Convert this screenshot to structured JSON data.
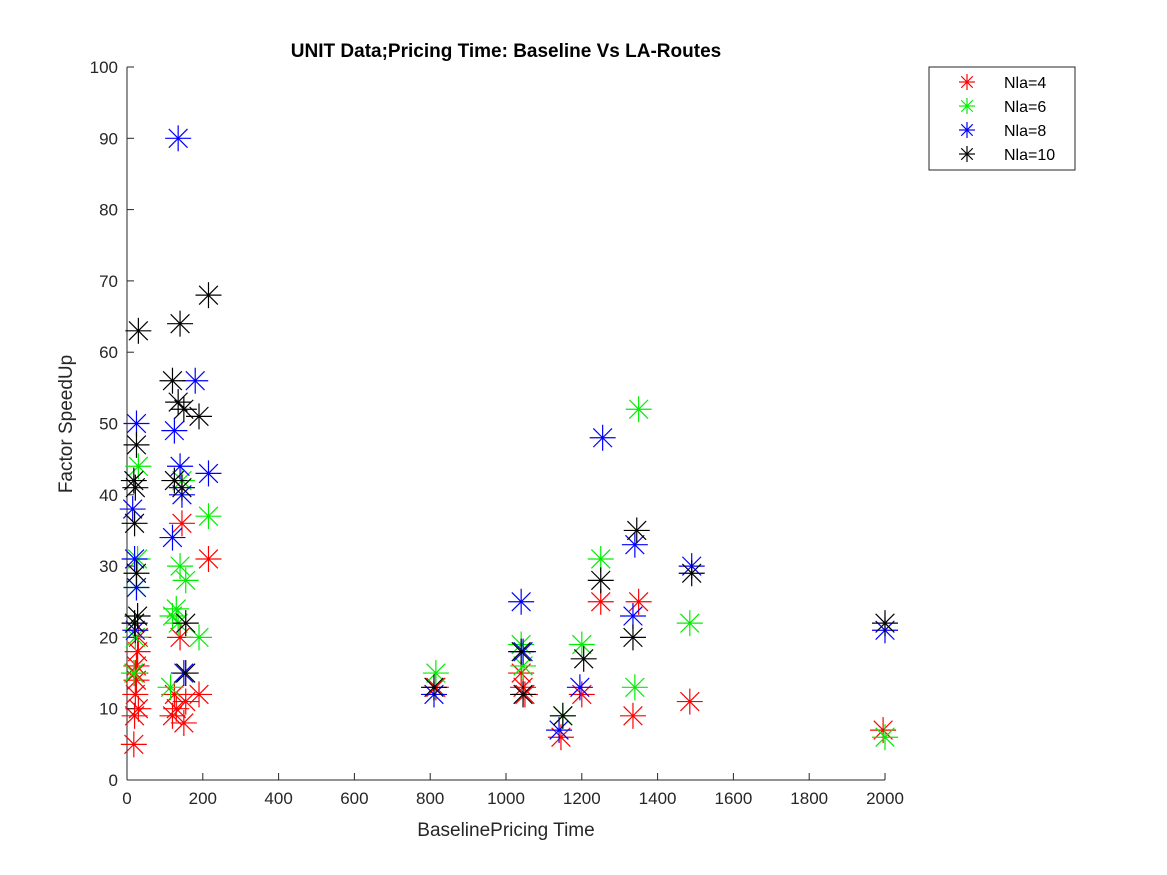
{
  "chart_data": {
    "type": "scatter",
    "title": "UNIT Data;Pricing Time: Baseline Vs LA-Routes",
    "xlabel": "BaselinePricing Time",
    "ylabel": "Factor SpeedUp",
    "xlim": [
      0,
      2000
    ],
    "ylim": [
      0,
      100
    ],
    "xticks": [
      0,
      200,
      400,
      600,
      800,
      1000,
      1200,
      1400,
      1600,
      1800,
      2000
    ],
    "yticks": [
      0,
      10,
      20,
      30,
      40,
      50,
      60,
      70,
      80,
      90,
      100
    ],
    "grid": false,
    "legend_position": "top-right",
    "marker": "asterisk",
    "series": [
      {
        "name": "Nla=4",
        "color": "#ff0000",
        "points": [
          [
            18,
            5
          ],
          [
            20,
            9
          ],
          [
            22,
            12
          ],
          [
            25,
            14
          ],
          [
            25,
            16
          ],
          [
            28,
            18
          ],
          [
            30,
            10
          ],
          [
            30,
            20
          ],
          [
            22,
            15
          ],
          [
            120,
            9
          ],
          [
            125,
            12
          ],
          [
            130,
            10
          ],
          [
            140,
            20
          ],
          [
            145,
            36
          ],
          [
            150,
            8
          ],
          [
            155,
            11
          ],
          [
            190,
            12
          ],
          [
            215,
            31
          ],
          [
            815,
            13
          ],
          [
            1040,
            15
          ],
          [
            1045,
            13
          ],
          [
            1050,
            12
          ],
          [
            1145,
            6
          ],
          [
            1200,
            12
          ],
          [
            1250,
            25
          ],
          [
            1335,
            9
          ],
          [
            1350,
            25
          ],
          [
            1485,
            11
          ],
          [
            1995,
            7
          ]
        ]
      },
      {
        "name": "Nla=6",
        "color": "#00ee00",
        "points": [
          [
            18,
            15
          ],
          [
            22,
            20
          ],
          [
            25,
            27
          ],
          [
            28,
            31
          ],
          [
            30,
            44
          ],
          [
            20,
            22
          ],
          [
            115,
            13
          ],
          [
            120,
            23
          ],
          [
            130,
            24
          ],
          [
            135,
            22
          ],
          [
            140,
            30
          ],
          [
            145,
            42
          ],
          [
            155,
            28
          ],
          [
            190,
            20
          ],
          [
            215,
            37
          ],
          [
            815,
            15
          ],
          [
            1040,
            19
          ],
          [
            1045,
            16
          ],
          [
            1150,
            9
          ],
          [
            1200,
            19
          ],
          [
            1250,
            31
          ],
          [
            1340,
            13
          ],
          [
            1350,
            52
          ],
          [
            1485,
            22
          ],
          [
            2000,
            6
          ]
        ]
      },
      {
        "name": "Nla=8",
        "color": "#0000ff",
        "points": [
          [
            15,
            38
          ],
          [
            20,
            31
          ],
          [
            25,
            27
          ],
          [
            22,
            21
          ],
          [
            25,
            50
          ],
          [
            120,
            34
          ],
          [
            125,
            49
          ],
          [
            135,
            90
          ],
          [
            140,
            44
          ],
          [
            145,
            40
          ],
          [
            150,
            15
          ],
          [
            180,
            56
          ],
          [
            215,
            43
          ],
          [
            810,
            12
          ],
          [
            1040,
            25
          ],
          [
            1045,
            18
          ],
          [
            1140,
            7
          ],
          [
            1195,
            13
          ],
          [
            1255,
            48
          ],
          [
            1335,
            23
          ],
          [
            1340,
            33
          ],
          [
            1490,
            30
          ],
          [
            2000,
            21
          ]
        ]
      },
      {
        "name": "Nla=10",
        "color": "#000000",
        "points": [
          [
            20,
            36
          ],
          [
            22,
            41
          ],
          [
            25,
            47
          ],
          [
            25,
            29
          ],
          [
            28,
            23
          ],
          [
            30,
            63
          ],
          [
            18,
            42
          ],
          [
            20,
            22
          ],
          [
            120,
            56
          ],
          [
            125,
            42
          ],
          [
            135,
            53
          ],
          [
            140,
            64
          ],
          [
            145,
            41
          ],
          [
            150,
            52
          ],
          [
            155,
            22
          ],
          [
            155,
            15
          ],
          [
            190,
            51
          ],
          [
            215,
            68
          ],
          [
            810,
            13
          ],
          [
            1040,
            18
          ],
          [
            1045,
            12
          ],
          [
            1150,
            9
          ],
          [
            1205,
            17
          ],
          [
            1250,
            28
          ],
          [
            1335,
            20
          ],
          [
            1345,
            35
          ],
          [
            1490,
            29
          ],
          [
            2000,
            22
          ]
        ]
      }
    ]
  }
}
